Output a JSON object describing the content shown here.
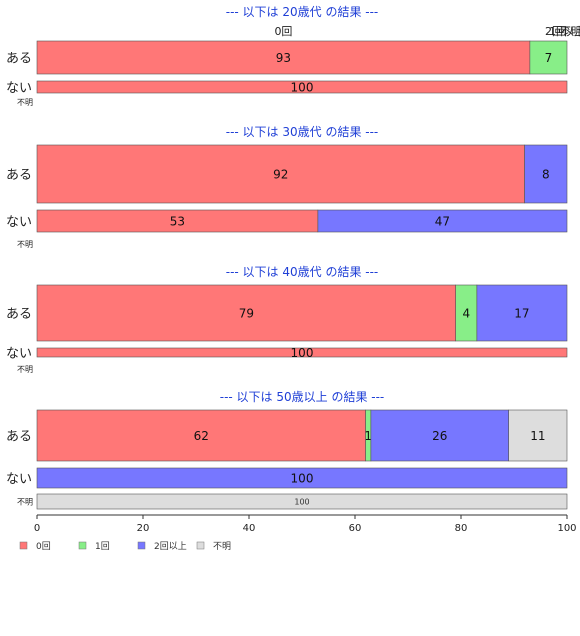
{
  "chart_data": {
    "type": "bar",
    "orientation": "horizontal-stacked-100",
    "categories": [
      "0回",
      "1回",
      "2回以上",
      "不明"
    ],
    "colors": [
      "#ff7777",
      "#88ee88",
      "#7777ff",
      "#dddddd"
    ],
    "xlim": [
      0,
      100
    ],
    "xticks": [
      0,
      20,
      40,
      60,
      80,
      100
    ],
    "grid": false,
    "legend": "bottom-left",
    "top_category_labels": [
      "0回",
      "1回",
      "2回以上",
      "不明"
    ],
    "groups": [
      {
        "title": "--- 以下は 20歳代 の結果 ---",
        "rows": [
          {
            "label": "ある",
            "values": [
              93,
              7,
              0,
              0
            ]
          },
          {
            "label": "ない",
            "values": [
              100,
              0,
              0,
              0
            ]
          },
          {
            "label": "不明",
            "values": [
              0,
              0,
              0,
              0
            ]
          }
        ]
      },
      {
        "title": "--- 以下は 30歳代 の結果 ---",
        "rows": [
          {
            "label": "ある",
            "values": [
              92,
              0,
              8,
              0
            ]
          },
          {
            "label": "ない",
            "values": [
              53,
              0,
              47,
              0
            ]
          },
          {
            "label": "不明",
            "values": [
              0,
              0,
              0,
              0
            ]
          }
        ]
      },
      {
        "title": "--- 以下は 40歳代 の結果 ---",
        "rows": [
          {
            "label": "ある",
            "values": [
              79,
              4,
              17,
              0
            ]
          },
          {
            "label": "ない",
            "values": [
              100,
              0,
              0,
              0
            ]
          },
          {
            "label": "不明",
            "values": [
              0,
              0,
              0,
              0
            ]
          }
        ]
      },
      {
        "title": "--- 以下は 50歳以上 の結果 ---",
        "rows": [
          {
            "label": "ある",
            "values": [
              62,
              1,
              26,
              11
            ]
          },
          {
            "label": "ない",
            "values": [
              0,
              0,
              100,
              0
            ]
          },
          {
            "label": "不明",
            "values": [
              0,
              0,
              0,
              100
            ]
          }
        ]
      }
    ]
  }
}
